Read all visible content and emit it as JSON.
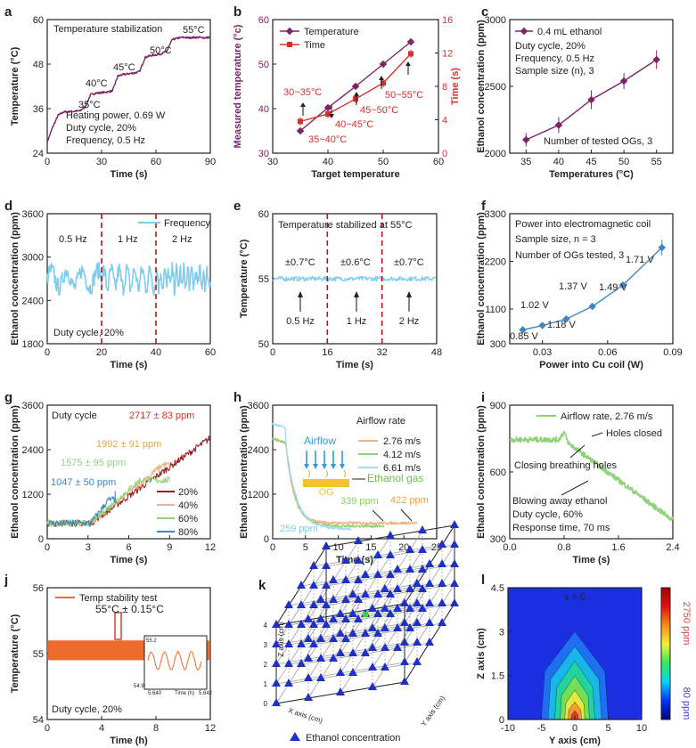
{
  "colors": {
    "maroon": "#7b2466",
    "red": "#d7302c",
    "lightblue": "#7fcdee",
    "dash": "#b01515",
    "blue": "#3f86c6",
    "orange": "#ec6a2c",
    "green": "#9acd8a",
    "peach": "#f3b082",
    "cyan_light": "#a6dcf1",
    "darkred": "#9b1f23",
    "lightgreen": "#8fd27a",
    "tri": "#1f31c4"
  },
  "chart_data": [
    {
      "id": "a",
      "type": "line",
      "panel_label": "a",
      "xlabel": "Time (s)",
      "ylabel": "Temperature (°C)",
      "xlim": [
        0,
        90
      ],
      "ylim": [
        24,
        60
      ],
      "xticks": [
        "0",
        "30",
        "60",
        "90"
      ],
      "yticks": [
        "24",
        "36",
        "48",
        "60"
      ],
      "x": [
        0,
        3,
        6,
        9,
        12,
        15,
        18,
        21,
        24,
        27,
        30,
        33,
        36,
        39,
        42,
        45,
        48,
        51,
        54,
        57,
        60,
        63,
        66,
        69,
        72,
        75,
        78,
        81,
        84,
        87,
        90
      ],
      "y": [
        27,
        31,
        34.2,
        35.1,
        35.2,
        35.3,
        35.4,
        36.5,
        39.8,
        40.2,
        40.3,
        40.5,
        40.8,
        44.8,
        45.2,
        45.4,
        45.6,
        46,
        49.8,
        50.3,
        50.5,
        50.8,
        51.5,
        54.6,
        55.0,
        55.2,
        55.1,
        55.2,
        55.2,
        55.1,
        55.2
      ],
      "annotations": [
        "Temperature stabilization",
        "35°C",
        "40°C",
        "45°C",
        "50°C",
        "55°C",
        "Heating power, 0.69 W",
        "Duty cycle, 20%",
        "Frequency, 0.5 Hz"
      ]
    },
    {
      "id": "b",
      "type": "line",
      "panel_label": "b",
      "xlabel": "Target temperature",
      "ylabel": "Measured temperature (°c)",
      "y2label": "Time (s)",
      "xlim": [
        30,
        60
      ],
      "ylim": [
        30,
        60
      ],
      "y2lim": [
        0,
        16
      ],
      "xticks": [
        "30",
        "40",
        "50",
        "60"
      ],
      "yticks": [
        "30",
        "40",
        "50",
        "60"
      ],
      "y2ticks": [
        "0",
        "4",
        "8",
        "12",
        "16"
      ],
      "series": [
        {
          "name": "Temperature",
          "x": [
            35,
            40,
            45,
            50,
            55
          ],
          "y": [
            35.0,
            40.2,
            45.0,
            50.0,
            55.0
          ],
          "err": [
            0.6,
            0.6,
            0.6,
            0.6,
            0.6
          ]
        },
        {
          "name": "Time",
          "x": [
            35,
            40,
            45,
            50,
            55
          ],
          "y": [
            3.8,
            4.7,
            6.5,
            8.4,
            11.9
          ],
          "err": [
            0.5,
            0.5,
            0.5,
            0.5,
            0.5
          ]
        }
      ],
      "annotations": [
        "30~35°C",
        "35~40°C",
        "40~45°C",
        "45~50°C",
        "50~55°C"
      ]
    },
    {
      "id": "c",
      "type": "line",
      "panel_label": "c",
      "xlabel": "Temperatures (°C)",
      "ylabel": "Ethanol concentration (ppm)",
      "xlim": [
        32.5,
        57.5
      ],
      "ylim": [
        2000,
        3000
      ],
      "xticks": [
        "35",
        "40",
        "45",
        "50",
        "55"
      ],
      "yticks": [
        "2000",
        "2500",
        "3000"
      ],
      "series": [
        {
          "name": "0.4 mL ethanol",
          "x": [
            35,
            40,
            45,
            50,
            55
          ],
          "y": [
            2100,
            2210,
            2400,
            2540,
            2700
          ],
          "err": [
            50,
            60,
            70,
            60,
            70
          ]
        }
      ],
      "annotations": [
        "Duty cycle, 20%",
        "Frequency, 0.5 Hz",
        "Sample size (n), 3",
        "Number of tested OGs, 3"
      ]
    },
    {
      "id": "d",
      "type": "line",
      "panel_label": "d",
      "xlabel": "Time (s)",
      "ylabel": "Ethanol concentration (ppm)",
      "xlim": [
        0,
        60
      ],
      "ylim": [
        1800,
        3600
      ],
      "xticks": [
        "0",
        "20",
        "40",
        "60"
      ],
      "yticks": [
        "1800",
        "2400",
        "3000",
        "3600"
      ],
      "series": [
        {
          "name": "Frequency",
          "base": 2700,
          "amp": 220
        }
      ],
      "dividers": [
        20,
        40
      ],
      "annotations": [
        "0.5 Hz",
        "1 Hz",
        "2 Hz",
        "Duty cycle, 20%"
      ]
    },
    {
      "id": "e",
      "type": "line",
      "panel_label": "e",
      "xlabel": "Time (s)",
      "ylabel": "Temperature (°C)",
      "xlim": [
        0,
        48
      ],
      "ylim": [
        50,
        60
      ],
      "xticks": [
        "0",
        "16",
        "32",
        "48"
      ],
      "yticks": [
        "50",
        "55",
        "60"
      ],
      "series": [
        {
          "name": "Temperature",
          "base": 55,
          "amp": 0.35
        }
      ],
      "dividers": [
        16,
        32
      ],
      "annotations": [
        "Temperature stabilized at 55°C",
        "±0.7°C",
        "±0.6°C",
        "±0.7°C",
        "0.5 Hz",
        "1 Hz",
        "2 Hz"
      ]
    },
    {
      "id": "f",
      "type": "line",
      "panel_label": "f",
      "xlabel": "Power into Cu coil (W)",
      "ylabel": "Ethanol concentration (ppm)",
      "xlim": [
        0.015,
        0.09
      ],
      "ylim": [
        300,
        3300
      ],
      "xticks": [
        "0.03",
        "0.06",
        "0.09"
      ],
      "yticks": [
        "300",
        "1100",
        "2200",
        "3300"
      ],
      "series": [
        {
          "name": "Power",
          "x": [
            0.021,
            0.03,
            0.041,
            0.053,
            0.067,
            0.085
          ],
          "y": [
            620,
            720,
            870,
            1160,
            1650,
            2520
          ],
          "err": [
            50,
            50,
            50,
            60,
            70,
            180
          ]
        }
      ],
      "annotations": [
        "Power into electromagnetic coil",
        "Sample size, n = 3",
        "Number of OGs tested, 3",
        "0.85 V",
        "1.02 V",
        "1.18 V",
        "1.37 V",
        "1.49 V",
        "1.71 V"
      ]
    },
    {
      "id": "g",
      "type": "line",
      "panel_label": "g",
      "xlabel": "Time (s)",
      "ylabel": "Ethanol concentration (ppm)",
      "xlim": [
        0,
        12
      ],
      "ylim": [
        0,
        3600
      ],
      "xticks": [
        "0",
        "3",
        "6",
        "9",
        "12"
      ],
      "yticks": [
        "0",
        "1200",
        "2400",
        "3600"
      ],
      "series": [
        {
          "name": "20%",
          "end": 2717
        },
        {
          "name": "40%",
          "end": 1992
        },
        {
          "name": "60%",
          "end": 1575
        },
        {
          "name": "80%",
          "end": 1047
        }
      ],
      "annotations": [
        "Duty cycle",
        "2717 ± 83 ppm",
        "1992 ± 91 ppm",
        "1575 ± 95 ppm",
        "1047 ± 50 ppm"
      ]
    },
    {
      "id": "h",
      "type": "line",
      "panel_label": "h",
      "xlabel": "Time (s)",
      "ylabel": "Ethanol concentration (ppm)",
      "xlim": [
        0,
        25
      ],
      "ylim": [
        0,
        3600
      ],
      "xticks": [
        "0",
        "5",
        "10",
        "15",
        "20",
        "25"
      ],
      "yticks": [
        "0",
        "1200",
        "2400",
        "3600"
      ],
      "series": [
        {
          "name": "2.76 m/s",
          "end": 422,
          "tend": 22
        },
        {
          "name": "4.12 m/s",
          "end": 339,
          "tend": 17
        },
        {
          "name": "6.61 m/s",
          "end": 259,
          "tend": 12
        }
      ],
      "annotations": [
        "Airflow rate",
        "Airflow",
        "Ethanol gas",
        "OG",
        "339 ppm",
        "422 ppm",
        "259 ppm"
      ]
    },
    {
      "id": "i",
      "type": "line",
      "panel_label": "i",
      "xlabel": "Time (s)",
      "ylabel": "Ethanol concentration (ppm)",
      "xlim": [
        0,
        2.4
      ],
      "ylim": [
        300,
        900
      ],
      "xticks": [
        "0.0",
        "0.8",
        "1.6",
        "2.4"
      ],
      "yticks": [
        "300",
        "600",
        "900"
      ],
      "series": [
        {
          "name": "Airflow rate, 2.76 m/s"
        }
      ],
      "annotations": [
        "Holes closed",
        "Closing breathing holes",
        "Blowing away ethanol",
        "Duty cycle, 60%",
        "Response time, 70 ms"
      ]
    },
    {
      "id": "j",
      "type": "line",
      "panel_label": "j",
      "xlabel": "Time (h)",
      "ylabel": "Temperature (°C)",
      "xlim": [
        0,
        12
      ],
      "ylim": [
        54,
        56
      ],
      "xticks": [
        "0",
        "4",
        "8",
        "12"
      ],
      "yticks": [
        "54",
        "55",
        "56"
      ],
      "series": [
        {
          "name": "Temp stability test",
          "base": 55.05,
          "amp": 0.15
        }
      ],
      "annotations": [
        "55°C ± 0.15°C",
        "Duty cycle, 20%",
        "55.2",
        "54.9",
        "5.640",
        "Time (h)",
        "5.642"
      ]
    },
    {
      "id": "k",
      "type": "scatter",
      "panel_label": "k",
      "xlabel": "X axis (cm)",
      "ylabel": "Y axis (cm)",
      "zlabel": "Z axis (cm)",
      "zticks": [
        "0",
        "1",
        "2",
        "3",
        "4"
      ],
      "series": [
        {
          "name": "Ethanol concentration"
        }
      ]
    },
    {
      "id": "l",
      "type": "heatmap",
      "panel_label": "l",
      "xlabel": "Y axis (cm)",
      "ylabel": "Z axis (cm)",
      "xlim": [
        -10,
        10
      ],
      "ylim": [
        0,
        4.5
      ],
      "xticks": [
        "-10",
        "-5",
        "0",
        "5",
        "10"
      ],
      "yticks": [
        "0",
        "1.5",
        "3",
        "4.5"
      ],
      "title": "x = 0",
      "colorbar": {
        "max_label": "2750 ppm",
        "min_label": "80 ppm"
      }
    }
  ]
}
